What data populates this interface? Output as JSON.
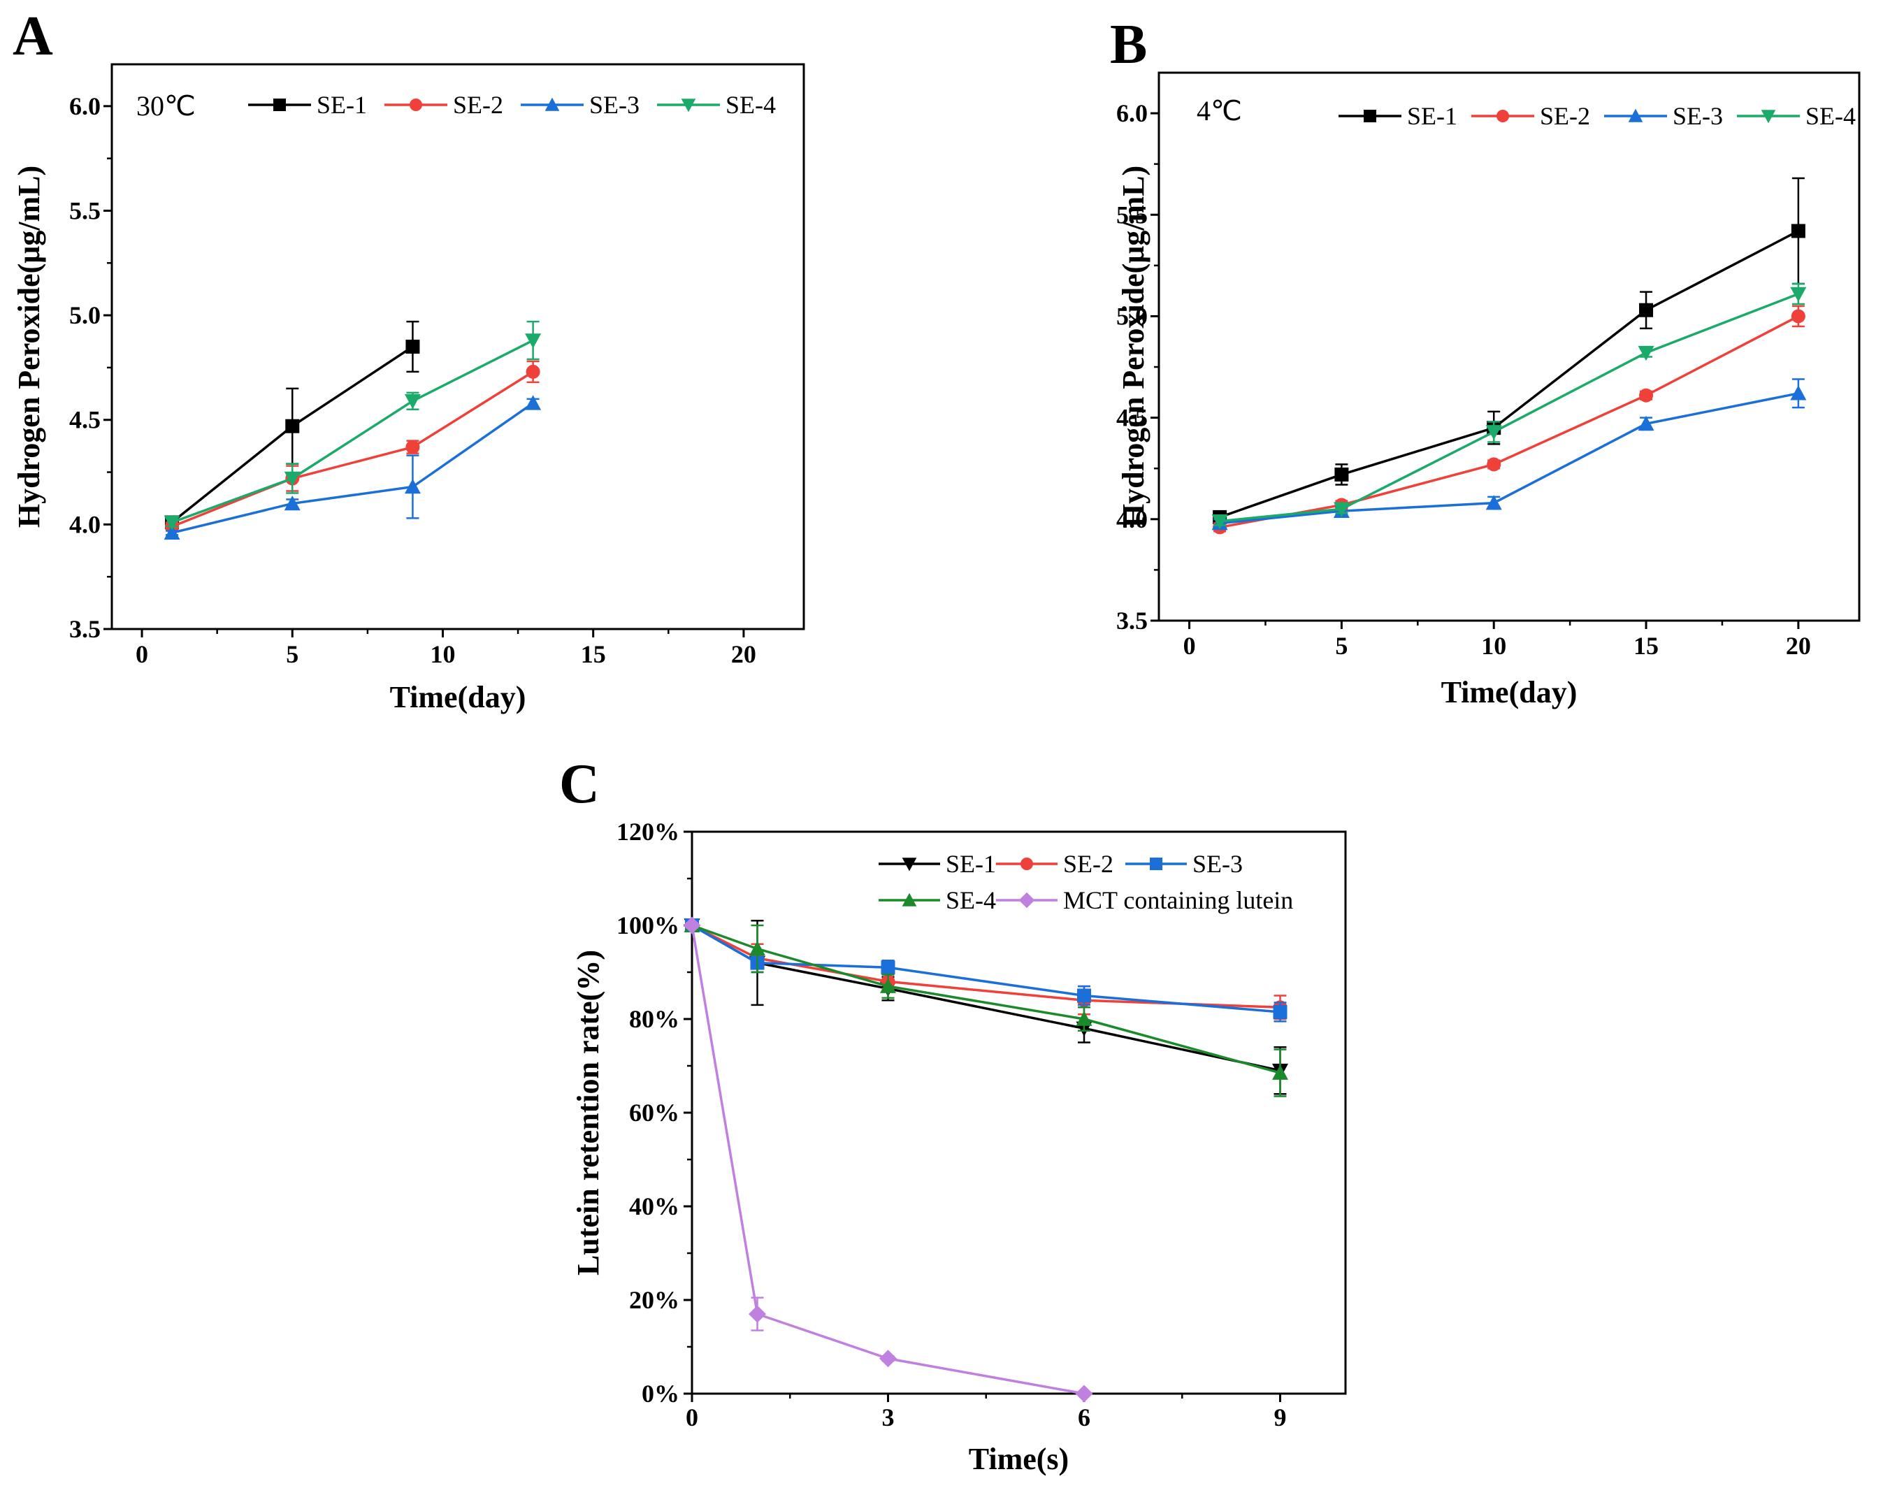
{
  "figure": {
    "panel_labels": [
      "A",
      "B",
      "C"
    ]
  },
  "chart_data": [
    {
      "panel": "A",
      "type": "line",
      "annotation": "30℃",
      "xlabel": "Time(day)",
      "ylabel": "Hydrogen Peroxide(μg/mL)",
      "xlim": [
        -1,
        22
      ],
      "ylim": [
        3.5,
        6.2
      ],
      "xticks": [
        0,
        5,
        10,
        15,
        20
      ],
      "xtick_labels": [
        "0",
        "5",
        "10",
        "15",
        "20"
      ],
      "yticks": [
        3.5,
        4.0,
        4.5,
        5.0,
        5.5,
        6.0
      ],
      "ytick_labels": [
        "3.5",
        "4.0",
        "4.5",
        "5.0",
        "5.5",
        "6.0"
      ],
      "legend_position": "top",
      "series": [
        {
          "name": "SE-1",
          "color": "#000000",
          "marker": "square",
          "x": [
            1,
            5,
            9
          ],
          "y": [
            4.01,
            4.47,
            4.85
          ],
          "err": [
            0.02,
            0.18,
            0.12
          ]
        },
        {
          "name": "SE-2",
          "color": "#f0403a",
          "marker": "circle",
          "x": [
            1,
            5,
            9,
            13
          ],
          "y": [
            3.99,
            4.22,
            4.37,
            4.73
          ],
          "err": [
            0.02,
            0.06,
            0.03,
            0.05
          ]
        },
        {
          "name": "SE-3",
          "color": "#1a6fd8",
          "marker": "triangle-up",
          "x": [
            1,
            5,
            9,
            13
          ],
          "y": [
            3.96,
            4.1,
            4.18,
            4.58
          ],
          "err": [
            0.01,
            0.02,
            0.15,
            0.02
          ]
        },
        {
          "name": "SE-4",
          "color": "#1aaa6a",
          "marker": "triangle-down",
          "x": [
            1,
            5,
            9,
            13
          ],
          "y": [
            4.01,
            4.22,
            4.59,
            4.88
          ],
          "err": [
            0.02,
            0.07,
            0.04,
            0.09
          ]
        }
      ]
    },
    {
      "panel": "B",
      "type": "line",
      "annotation": "4℃",
      "xlabel": "Time(day)",
      "ylabel": "Hydrogen Peroxide(μg/mL)",
      "xlim": [
        -1,
        22
      ],
      "ylim": [
        3.5,
        6.2
      ],
      "xticks": [
        0,
        5,
        10,
        15,
        20
      ],
      "xtick_labels": [
        "0",
        "5",
        "10",
        "15",
        "20"
      ],
      "yticks": [
        3.5,
        4.0,
        4.5,
        5.0,
        5.5,
        6.0
      ],
      "ytick_labels": [
        "3.5",
        "4.0",
        "4.5",
        "5.0",
        "5.5",
        "6.0"
      ],
      "legend_position": "top",
      "series": [
        {
          "name": "SE-1",
          "color": "#000000",
          "marker": "square",
          "x": [
            1,
            5,
            10,
            15,
            20
          ],
          "y": [
            4.01,
            4.22,
            4.45,
            5.03,
            5.42
          ],
          "err": [
            0.02,
            0.05,
            0.08,
            0.09,
            0.26
          ]
        },
        {
          "name": "SE-2",
          "color": "#f0403a",
          "marker": "circle",
          "x": [
            1,
            5,
            10,
            15,
            20
          ],
          "y": [
            3.96,
            4.07,
            4.27,
            4.61,
            5.0
          ],
          "err": [
            0.02,
            0.02,
            0.02,
            0.02,
            0.05
          ]
        },
        {
          "name": "SE-3",
          "color": "#1a6fd8",
          "marker": "triangle-up",
          "x": [
            1,
            5,
            10,
            15,
            20
          ],
          "y": [
            3.98,
            4.04,
            4.08,
            4.47,
            4.62
          ],
          "err": [
            0.02,
            0.02,
            0.03,
            0.03,
            0.07
          ]
        },
        {
          "name": "SE-4",
          "color": "#1aaa6a",
          "marker": "triangle-down",
          "x": [
            1,
            5,
            10,
            15,
            20
          ],
          "y": [
            3.99,
            4.05,
            4.43,
            4.82,
            5.11
          ],
          "err": [
            0.02,
            0.02,
            0.05,
            0.02,
            0.05
          ]
        }
      ]
    },
    {
      "panel": "C",
      "type": "line",
      "annotation": "",
      "xlabel": "Time(s)",
      "ylabel": "Lutein retention rate(%)",
      "xlim": [
        0,
        10
      ],
      "ylim": [
        0,
        120
      ],
      "xticks": [
        0,
        3,
        6,
        9
      ],
      "xtick_labels": [
        "0",
        "3",
        "6",
        "9"
      ],
      "yticks": [
        0,
        20,
        40,
        60,
        80,
        100,
        120
      ],
      "ytick_labels": [
        "0%",
        "20%",
        "40%",
        "60%",
        "80%",
        "100%",
        "120%"
      ],
      "legend_position": "top-right",
      "series": [
        {
          "name": "SE-1",
          "color": "#000000",
          "marker": "triangle-down",
          "x": [
            0,
            1,
            3,
            6,
            9
          ],
          "y": [
            100,
            92,
            86.5,
            78,
            69
          ],
          "err": [
            0.5,
            9,
            2.5,
            3,
            5
          ]
        },
        {
          "name": "SE-2",
          "color": "#f0403a",
          "marker": "circle",
          "x": [
            0,
            1,
            3,
            6,
            9
          ],
          "y": [
            100,
            93,
            88,
            84,
            82.5
          ],
          "err": [
            0.5,
            3,
            1.5,
            3,
            2.5
          ]
        },
        {
          "name": "SE-3",
          "color": "#1a6fd8",
          "marker": "square",
          "x": [
            0,
            1,
            3,
            6,
            9
          ],
          "y": [
            100,
            92,
            91,
            85,
            81.5
          ],
          "err": [
            0.5,
            2,
            1.5,
            2,
            2
          ]
        },
        {
          "name": "SE-4",
          "color": "#1a8a2a",
          "marker": "triangle-up",
          "x": [
            0,
            1,
            3,
            6,
            9
          ],
          "y": [
            100,
            95,
            87,
            80,
            68.5
          ],
          "err": [
            0.5,
            5,
            2.5,
            2.5,
            5
          ]
        },
        {
          "name": "MCT containing lutein",
          "color": "#c080e0",
          "marker": "diamond",
          "x": [
            0,
            1,
            3,
            6
          ],
          "y": [
            100,
            17,
            7.5,
            0
          ],
          "err": [
            0.5,
            3.5,
            0.5,
            0
          ]
        }
      ]
    }
  ]
}
